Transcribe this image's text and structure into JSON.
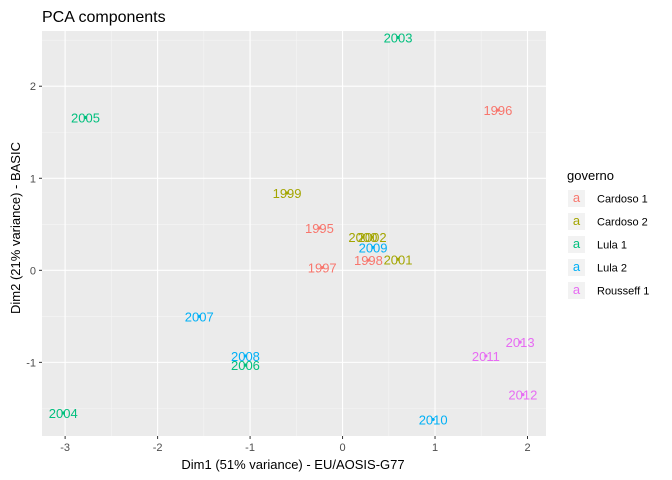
{
  "chart_data": {
    "type": "scatter",
    "title": "PCA components",
    "xlabel": "Dim1 (51% variance) - EU/AOSIS-G77",
    "ylabel": "Dim2 (21% variance) - BASIC",
    "xlim": [
      -3.25,
      2.2
    ],
    "ylim": [
      -1.8,
      2.6
    ],
    "x_ticks": [
      -3,
      -2,
      -1,
      0,
      1,
      2
    ],
    "y_ticks": [
      -1,
      0,
      1,
      2
    ],
    "grid": true,
    "legend": {
      "title": "governo",
      "position": "right",
      "glyph": "a",
      "entries": [
        {
          "name": "Cardoso 1",
          "color": "#F8766D"
        },
        {
          "name": "Cardoso 2",
          "color": "#A3A500"
        },
        {
          "name": "Lula 1",
          "color": "#00BF7D"
        },
        {
          "name": "Lula 2",
          "color": "#00B0F6"
        },
        {
          "name": "Rousseff 1",
          "color": "#E76BF3"
        }
      ]
    },
    "points": [
      {
        "label": "1995",
        "x": -0.25,
        "y": 0.46,
        "group": "Cardoso 1"
      },
      {
        "label": "1996",
        "x": 1.68,
        "y": 1.74,
        "group": "Cardoso 1"
      },
      {
        "label": "1997",
        "x": -0.22,
        "y": 0.03,
        "group": "Cardoso 1"
      },
      {
        "label": "1998",
        "x": 0.28,
        "y": 0.11,
        "group": "Cardoso 1"
      },
      {
        "label": "1999",
        "x": -0.6,
        "y": 0.84,
        "group": "Cardoso 2"
      },
      {
        "label": "2000",
        "x": 0.22,
        "y": 0.36,
        "group": "Cardoso 2"
      },
      {
        "label": "2001",
        "x": 0.6,
        "y": 0.12,
        "group": "Cardoso 2"
      },
      {
        "label": "2002",
        "x": 0.32,
        "y": 0.36,
        "group": "Cardoso 2"
      },
      {
        "label": "2003",
        "x": 0.6,
        "y": 2.53,
        "group": "Lula 1"
      },
      {
        "label": "2004",
        "x": -3.02,
        "y": -1.55,
        "group": "Lula 1"
      },
      {
        "label": "2005",
        "x": -2.78,
        "y": 1.66,
        "group": "Lula 1"
      },
      {
        "label": "2006",
        "x": -1.05,
        "y": -1.03,
        "group": "Lula 1"
      },
      {
        "label": "2007",
        "x": -1.55,
        "y": -0.5,
        "group": "Lula 2"
      },
      {
        "label": "2008",
        "x": -1.05,
        "y": -0.93,
        "group": "Lula 2"
      },
      {
        "label": "2009",
        "x": 0.33,
        "y": 0.25,
        "group": "Lula 2"
      },
      {
        "label": "2010",
        "x": 0.98,
        "y": -1.62,
        "group": "Lula 2"
      },
      {
        "label": "2011",
        "x": 1.55,
        "y": -0.93,
        "group": "Rousseff 1"
      },
      {
        "label": "2012",
        "x": 1.95,
        "y": -1.35,
        "group": "Rousseff 1"
      },
      {
        "label": "2013",
        "x": 1.92,
        "y": -0.78,
        "group": "Rousseff 1"
      }
    ]
  }
}
